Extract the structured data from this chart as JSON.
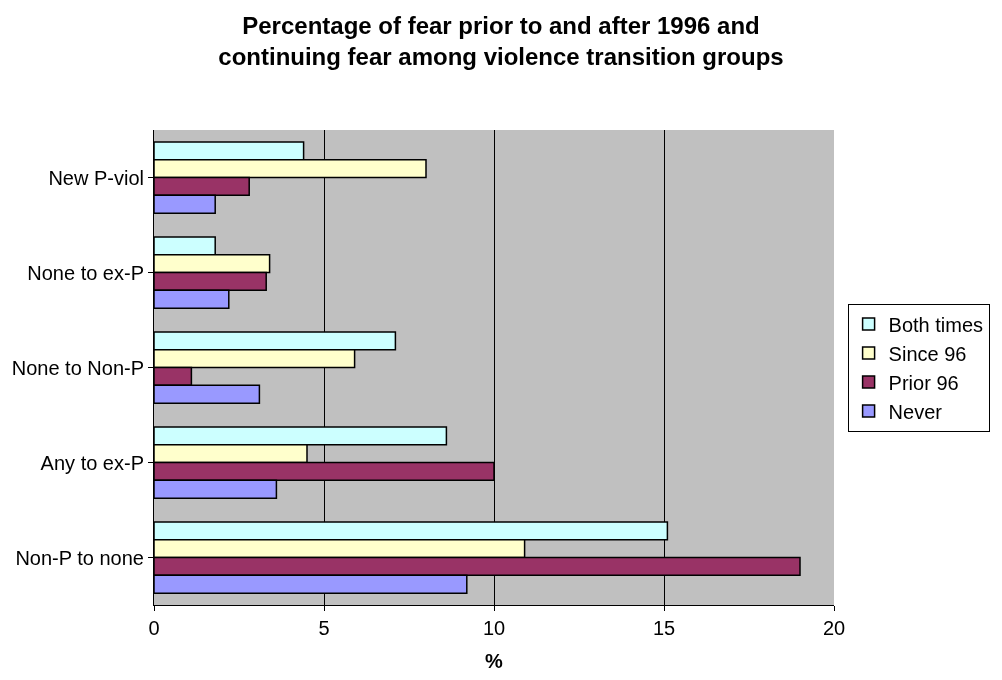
{
  "chart_data": {
    "type": "bar",
    "orientation": "horizontal",
    "title": "Percentage of fear prior to and after 1996 and continuing fear among violence transition groups",
    "xlabel": "%",
    "categories": [
      "New P-viol",
      "None to ex-P",
      "None to Non-P",
      "Any to ex-P",
      "Non-P to none"
    ],
    "series": [
      {
        "name": "Both times",
        "color": "#ccffff",
        "values": [
          4.4,
          1.8,
          7.1,
          8.6,
          15.1
        ]
      },
      {
        "name": "Since 96",
        "color": "#ffffcc",
        "values": [
          8.0,
          3.4,
          5.9,
          4.5,
          10.9
        ]
      },
      {
        "name": "Prior 96",
        "color": "#993366",
        "values": [
          2.8,
          3.3,
          1.1,
          10.0,
          19.0
        ]
      },
      {
        "name": "Never",
        "color": "#9999ff",
        "values": [
          1.8,
          2.2,
          3.1,
          3.6,
          9.2
        ]
      }
    ],
    "xlim": [
      0,
      20
    ],
    "xticks": [
      0,
      5,
      10,
      15,
      20
    ],
    "grid": "x",
    "legend": "right"
  }
}
